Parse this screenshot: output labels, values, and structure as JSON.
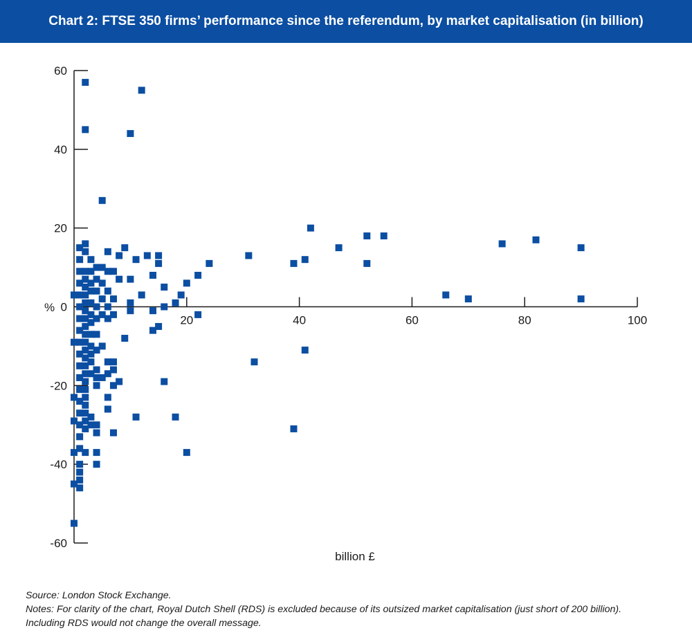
{
  "header": {
    "title": "Chart 2: FTSE 350 firms’ performance since the referendum, by market capitalisation (in billion)"
  },
  "footer": {
    "source": "Source: London Stock Exchange.",
    "notes_line1": "Notes: For clarity of the chart, Royal Dutch Shell (RDS) is excluded because of its outsized market capitalisation (just short of 200 billion).",
    "notes_line2": "Including RDS would not change the overall message."
  },
  "colors": {
    "banner": "#0b4ea2",
    "marker": "#0b4ea2",
    "axis": "#1a1a1a"
  },
  "chart_data": {
    "type": "scatter",
    "title": "Chart 2: FTSE 350 firms’ performance since the referendum, by market capitalisation (in billion)",
    "xlabel": "billion £",
    "ylabel": "%",
    "xlim": [
      0,
      100
    ],
    "ylim": [
      -60,
      60
    ],
    "xticks": [
      20,
      40,
      60,
      80,
      100
    ],
    "yticks": [
      60,
      40,
      20,
      0,
      -20,
      -40,
      -60
    ],
    "grid": false,
    "legend": "none",
    "series": [
      {
        "points": [
          [
            2,
            57
          ],
          [
            2,
            45
          ],
          [
            2,
            16
          ],
          [
            2,
            14
          ],
          [
            2,
            9
          ],
          [
            2,
            7
          ],
          [
            2,
            5
          ],
          [
            2,
            3
          ],
          [
            2,
            1
          ],
          [
            2,
            -1
          ],
          [
            2,
            -3
          ],
          [
            2,
            -5
          ],
          [
            2,
            -7
          ],
          [
            2,
            -9
          ],
          [
            2,
            -11
          ],
          [
            2,
            -13
          ],
          [
            2,
            -15
          ],
          [
            2,
            -17
          ],
          [
            2,
            -19
          ],
          [
            2,
            -21
          ],
          [
            2,
            -23
          ],
          [
            2,
            -25
          ],
          [
            2,
            -27
          ],
          [
            2,
            -29
          ],
          [
            2,
            -31
          ],
          [
            2,
            -37
          ],
          [
            1,
            15
          ],
          [
            1,
            12
          ],
          [
            1,
            9
          ],
          [
            1,
            6
          ],
          [
            1,
            3
          ],
          [
            1,
            0
          ],
          [
            1,
            -3
          ],
          [
            1,
            -6
          ],
          [
            1,
            -9
          ],
          [
            1,
            -12
          ],
          [
            1,
            -15
          ],
          [
            1,
            -18
          ],
          [
            1,
            -21
          ],
          [
            1,
            -24
          ],
          [
            1,
            -27
          ],
          [
            1,
            -30
          ],
          [
            1,
            -33
          ],
          [
            1,
            -36
          ],
          [
            1,
            -40
          ],
          [
            1,
            -42
          ],
          [
            1,
            -44
          ],
          [
            1,
            -46
          ],
          [
            0,
            3
          ],
          [
            0,
            -9
          ],
          [
            0,
            -23
          ],
          [
            0,
            -29
          ],
          [
            0,
            -37
          ],
          [
            0,
            -45
          ],
          [
            0,
            -55
          ],
          [
            3,
            12
          ],
          [
            3,
            9
          ],
          [
            3,
            6
          ],
          [
            3,
            4
          ],
          [
            3,
            1
          ],
          [
            3,
            -2
          ],
          [
            3,
            -4
          ],
          [
            3,
            -7
          ],
          [
            3,
            -10
          ],
          [
            3,
            -12
          ],
          [
            3,
            -14
          ],
          [
            3,
            -17
          ],
          [
            3,
            -28
          ],
          [
            3,
            -30
          ],
          [
            4,
            10
          ],
          [
            4,
            7
          ],
          [
            4,
            4
          ],
          [
            4,
            0
          ],
          [
            4,
            -3
          ],
          [
            4,
            -7
          ],
          [
            4,
            -11
          ],
          [
            4,
            -16
          ],
          [
            4,
            -18
          ],
          [
            4,
            -20
          ],
          [
            4,
            -30
          ],
          [
            4,
            -32
          ],
          [
            4,
            -37
          ],
          [
            4,
            -40
          ],
          [
            5,
            27
          ],
          [
            5,
            10
          ],
          [
            5,
            6
          ],
          [
            5,
            2
          ],
          [
            5,
            -2
          ],
          [
            5,
            -10
          ],
          [
            5,
            -18
          ],
          [
            6,
            14
          ],
          [
            6,
            9
          ],
          [
            6,
            4
          ],
          [
            6,
            0
          ],
          [
            6,
            -3
          ],
          [
            6,
            -14
          ],
          [
            6,
            -17
          ],
          [
            6,
            -23
          ],
          [
            6,
            -26
          ],
          [
            7,
            9
          ],
          [
            7,
            2
          ],
          [
            7,
            -2
          ],
          [
            7,
            -14
          ],
          [
            7,
            -16
          ],
          [
            7,
            -20
          ],
          [
            7,
            -32
          ],
          [
            8,
            13
          ],
          [
            8,
            7
          ],
          [
            8,
            -19
          ],
          [
            9,
            15
          ],
          [
            9,
            -8
          ],
          [
            10,
            44
          ],
          [
            10,
            7
          ],
          [
            10,
            1
          ],
          [
            10,
            -1
          ],
          [
            11,
            12
          ],
          [
            11,
            -28
          ],
          [
            12,
            55
          ],
          [
            12,
            3
          ],
          [
            13,
            13
          ],
          [
            14,
            8
          ],
          [
            14,
            -1
          ],
          [
            14,
            -6
          ],
          [
            15,
            13
          ],
          [
            15,
            11
          ],
          [
            15,
            -5
          ],
          [
            16,
            5
          ],
          [
            16,
            0
          ],
          [
            16,
            -19
          ],
          [
            18,
            1
          ],
          [
            18,
            -28
          ],
          [
            19,
            3
          ],
          [
            20,
            6
          ],
          [
            20,
            -37
          ],
          [
            22,
            8
          ],
          [
            22,
            -2
          ],
          [
            24,
            11
          ],
          [
            31,
            13
          ],
          [
            32,
            -14
          ],
          [
            39,
            11
          ],
          [
            39,
            -31
          ],
          [
            41,
            12
          ],
          [
            41,
            -11
          ],
          [
            42,
            20
          ],
          [
            47,
            15
          ],
          [
            52,
            18
          ],
          [
            52,
            11
          ],
          [
            55,
            18
          ],
          [
            66,
            3
          ],
          [
            70,
            2
          ],
          [
            76,
            16
          ],
          [
            82,
            17
          ],
          [
            90,
            15
          ],
          [
            90,
            2
          ]
        ]
      }
    ]
  }
}
